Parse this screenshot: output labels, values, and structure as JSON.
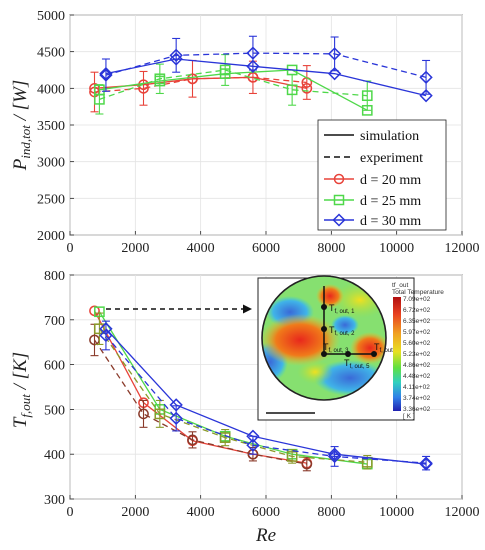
{
  "colors": {
    "red": "#e8433a",
    "green": "#4fd84a",
    "blue": "#2a35d8",
    "darkred": "#8a3a2a",
    "brown": "#8a6a3a",
    "olive": "#8a9a2a",
    "dk": "#222222"
  },
  "legend": {
    "simulation": "simulation",
    "experiment": "experiment",
    "d20": "d = 20 mm",
    "d25": "d = 25 mm",
    "d30": "d = 30 mm"
  },
  "chart_data": [
    {
      "type": "line",
      "ylabel_main": "P",
      "ylabel_sub": "ind,tot",
      "ylabel_rest": " / [W]",
      "xlim": [
        0,
        12000
      ],
      "ylim": [
        2000,
        5000
      ],
      "xticks": [
        0,
        2000,
        4000,
        6000,
        8000,
        10000,
        12000
      ],
      "yticks": [
        2000,
        2500,
        3000,
        3500,
        4000,
        4500,
        5000
      ],
      "series": [
        {
          "name": "d = 20 mm",
          "kind": "simulation",
          "color": "red",
          "x": [
            750,
            2250,
            3750,
            5600,
            7250
          ],
          "y": [
            4000,
            4050,
            4130,
            4150,
            4000
          ]
        },
        {
          "name": "d = 20 mm",
          "kind": "experiment",
          "color": "red",
          "x": [
            750,
            2250,
            3750,
            5600,
            7250
          ],
          "y": [
            3950,
            4000,
            4130,
            4150,
            4080
          ],
          "err": [
            270,
            230,
            250,
            220,
            230
          ]
        },
        {
          "name": "d = 25 mm",
          "kind": "simulation",
          "color": "green",
          "x": [
            900,
            2750,
            4750,
            6800,
            9100
          ],
          "y": [
            3980,
            4100,
            4200,
            4250,
            3700
          ]
        },
        {
          "name": "d = 25 mm",
          "kind": "experiment",
          "color": "green",
          "x": [
            900,
            2750,
            4750,
            6800,
            9100
          ],
          "y": [
            3850,
            4130,
            4250,
            3980,
            3900
          ],
          "err": [
            200,
            200,
            210,
            210,
            200
          ]
        },
        {
          "name": "d = 30 mm",
          "kind": "simulation",
          "color": "blue",
          "x": [
            1100,
            3250,
            5600,
            8100,
            10900
          ],
          "y": [
            4200,
            4400,
            4300,
            4200,
            3900
          ]
        },
        {
          "name": "d = 30 mm",
          "kind": "experiment",
          "color": "blue",
          "x": [
            1100,
            3250,
            5600,
            8100,
            10900
          ],
          "y": [
            4180,
            4450,
            4480,
            4470,
            4150
          ],
          "err": [
            220,
            230,
            230,
            230,
            230
          ]
        }
      ]
    },
    {
      "type": "line",
      "ylabel_main": "T",
      "ylabel_sub": "f,out",
      "ylabel_rest": " / [K]",
      "xlabel": "Re",
      "xlim": [
        0,
        12000
      ],
      "ylim": [
        300,
        800
      ],
      "xticks": [
        0,
        2000,
        4000,
        6000,
        8000,
        10000,
        12000
      ],
      "yticks": [
        300,
        400,
        500,
        600,
        700,
        800
      ],
      "series": [
        {
          "name": "d = 20 mm",
          "kind": "simulation",
          "color": "red",
          "x": [
            750,
            2250,
            3750,
            5600,
            7250
          ],
          "y": [
            720,
            515,
            430,
            400,
            380
          ]
        },
        {
          "name": "d = 20 mm",
          "kind": "experiment",
          "color": "darkred",
          "x": [
            750,
            2250,
            3750,
            5600,
            7250
          ],
          "y": [
            655,
            490,
            432,
            400,
            378
          ],
          "err": [
            35,
            30,
            18,
            15,
            15
          ]
        },
        {
          "name": "d = 25 mm",
          "kind": "simulation",
          "color": "green",
          "x": [
            900,
            2750,
            4750,
            6800,
            9100
          ],
          "y": [
            718,
            500,
            440,
            400,
            378
          ]
        },
        {
          "name": "d = 25 mm",
          "kind": "experiment",
          "color": "olive",
          "x": [
            900,
            2750,
            4750,
            6800,
            9100
          ],
          "y": [
            680,
            490,
            437,
            395,
            382
          ],
          "err": [
            35,
            30,
            18,
            15,
            15
          ]
        },
        {
          "name": "d = 30 mm",
          "kind": "simulation",
          "color": "blue",
          "x": [
            1100,
            3250,
            5600,
            8100,
            10900
          ],
          "y": [
            680,
            510,
            440,
            400,
            378
          ]
        },
        {
          "name": "d = 30 mm",
          "kind": "experiment",
          "color": "blue",
          "x": [
            1100,
            3250,
            5600,
            8100,
            10900
          ],
          "y": [
            665,
            480,
            420,
            395,
            380
          ],
          "err": [
            32,
            28,
            20,
            22,
            15
          ]
        }
      ]
    }
  ],
  "inset": {
    "title1": "tf_out",
    "title2": "Total Temperature",
    "scale": [
      "7.09e+02",
      "6.72e+02",
      "6.35e+02",
      "5.97e+02",
      "5.60e+02",
      "5.23e+02",
      "4.86e+02",
      "4.48e+02",
      "4.11e+02",
      "3.74e+02",
      "3.36e+02"
    ],
    "unit": "[ K ]",
    "probes": [
      "T",
      "f, out, 1",
      "f, out, 2",
      "f, out, 3",
      "f, out, 4",
      "f, out, 5"
    ]
  }
}
